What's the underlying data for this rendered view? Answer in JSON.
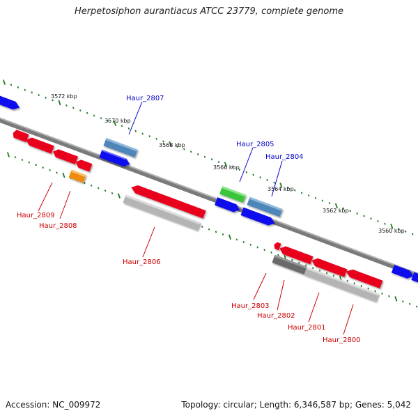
{
  "title": "Herpetosiphon aurantiacus ATCC 23779, complete genome",
  "footer": {
    "accession": "Accession: NC_009972",
    "summary": "Topology: circular; Length: 6,346,587 bp; Genes: 5,042"
  },
  "colors": {
    "backbone": "#7a7a7a",
    "tick": "#1f7a1f",
    "forward_label": "#0000c8",
    "reverse_label": "#cc0000",
    "cds_red": "#e8001c",
    "cds_blue": "#1010ee",
    "cds_steel": "#4f86b9",
    "cds_green": "#3cc43c",
    "cds_orange": "#f08c0c",
    "cds_gray": "#b4b4b4",
    "cds_darkgray": "#6a6a6a"
  },
  "scale_labels": [
    "3572 kbp",
    "3570 kbp",
    "3568 kbp",
    "3566 kbp",
    "3564 kbp",
    "3562 kbp",
    "3560 kbp"
  ],
  "gene_labels": {
    "forward": [
      "Haur_2807",
      "Haur_2805",
      "Haur_2804"
    ],
    "reverse": [
      "Haur_2809",
      "Haur_2808",
      "Haur_2806",
      "Haur_2803",
      "Haur_2802",
      "Haur_2801",
      "Haur_2800"
    ]
  }
}
